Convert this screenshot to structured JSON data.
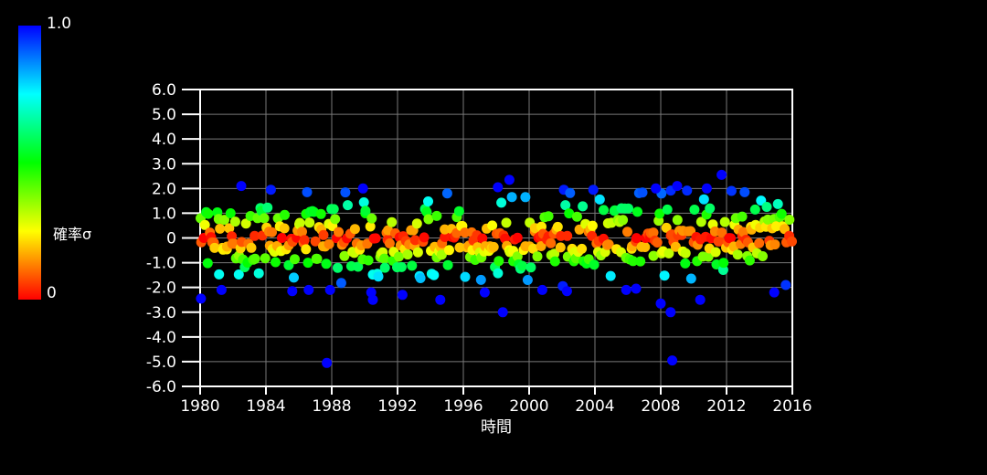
{
  "colors": {
    "background": "#000000",
    "axis": "#ffffff",
    "text": "#ffffff",
    "grid": "#787878"
  },
  "chart_data": {
    "type": "scatter",
    "title": "",
    "xlabel": "時間",
    "ylabel": "",
    "xlim": [
      1980,
      2016
    ],
    "ylim": [
      -6.0,
      6.0
    ],
    "grid": true,
    "x_ticks": {
      "values": [
        1980,
        1984,
        1988,
        1992,
        1996,
        2000,
        2004,
        2008,
        2012,
        2016
      ],
      "labels": [
        "1980",
        "1984",
        "1988",
        "1992",
        "1996",
        "2000",
        "2004",
        "2008",
        "2012",
        "2016"
      ]
    },
    "y_ticks": {
      "values": [
        6,
        5,
        4,
        3,
        2,
        1,
        0,
        -1,
        -2,
        -3,
        -4,
        -5,
        -6
      ],
      "labels": [
        "6.0",
        "5.0",
        "4.0",
        "3.0",
        "2.0",
        "1.0",
        "0",
        "-1.0",
        "-2.0",
        "-3.0",
        "-4.0",
        "-5.0",
        "-6.0"
      ]
    },
    "colorbar": {
      "title": "確率σ",
      "max_label": "1.0",
      "min_label": "0",
      "gradient_stops": [
        "#0000ff",
        "#00ffff",
        "#00ff00",
        "#ffff00",
        "#ff0000"
      ]
    },
    "color_rule": {
      "encoding": "point color = rainbow(c), c = min(|y|/abs_y_divisor, 1); c=0 red, c=1 blue",
      "abs_y_divisor": 2,
      "hue_max": 240
    },
    "marker": {
      "shape": "circle",
      "diameter": 11
    },
    "series_generator": {
      "comment": "dense monthly-like series 1980-2016, y ~ mixture of gaussians around 0",
      "seed": 42,
      "n": 440,
      "x_start": 1980.02,
      "x_end": 2015.93,
      "x_jitter": 0.05,
      "mixture": [
        {
          "weight": 0.45,
          "sigma": 0.5
        },
        {
          "weight": 0.35,
          "sigma": 1.05
        },
        {
          "weight": 0.2,
          "sigma": 1.6
        }
      ],
      "clip_abs": 1.95
    },
    "outlier_points": [
      [
        1980.05,
        -2.45
      ],
      [
        1981.3,
        -2.1
      ],
      [
        1982.5,
        2.1
      ],
      [
        1984.3,
        1.95
      ],
      [
        1985.6,
        -2.15
      ],
      [
        1986.5,
        1.85
      ],
      [
        1986.6,
        -2.1
      ],
      [
        1987.7,
        -5.05
      ],
      [
        1987.9,
        -2.1
      ],
      [
        1989.9,
        2.0
      ],
      [
        1990.4,
        -2.2
      ],
      [
        1990.5,
        -2.5
      ],
      [
        1992.3,
        -2.3
      ],
      [
        1994.6,
        -2.5
      ],
      [
        1997.3,
        -2.2
      ],
      [
        1998.1,
        2.05
      ],
      [
        1998.4,
        -3.0
      ],
      [
        1998.8,
        2.35
      ],
      [
        2000.8,
        -2.1
      ],
      [
        2002.3,
        -2.15
      ],
      [
        2003.9,
        1.95
      ],
      [
        2005.9,
        -2.1
      ],
      [
        2006.5,
        -2.05
      ],
      [
        2007.7,
        2.0
      ],
      [
        2008.0,
        -2.65
      ],
      [
        2008.6,
        -3.0
      ],
      [
        2008.7,
        -4.95
      ],
      [
        2009.0,
        2.1
      ],
      [
        2010.4,
        -2.5
      ],
      [
        2010.8,
        2.0
      ],
      [
        2011.7,
        2.55
      ],
      [
        2012.3,
        1.9
      ],
      [
        2013.1,
        1.85
      ],
      [
        2014.9,
        -2.2
      ]
    ]
  }
}
